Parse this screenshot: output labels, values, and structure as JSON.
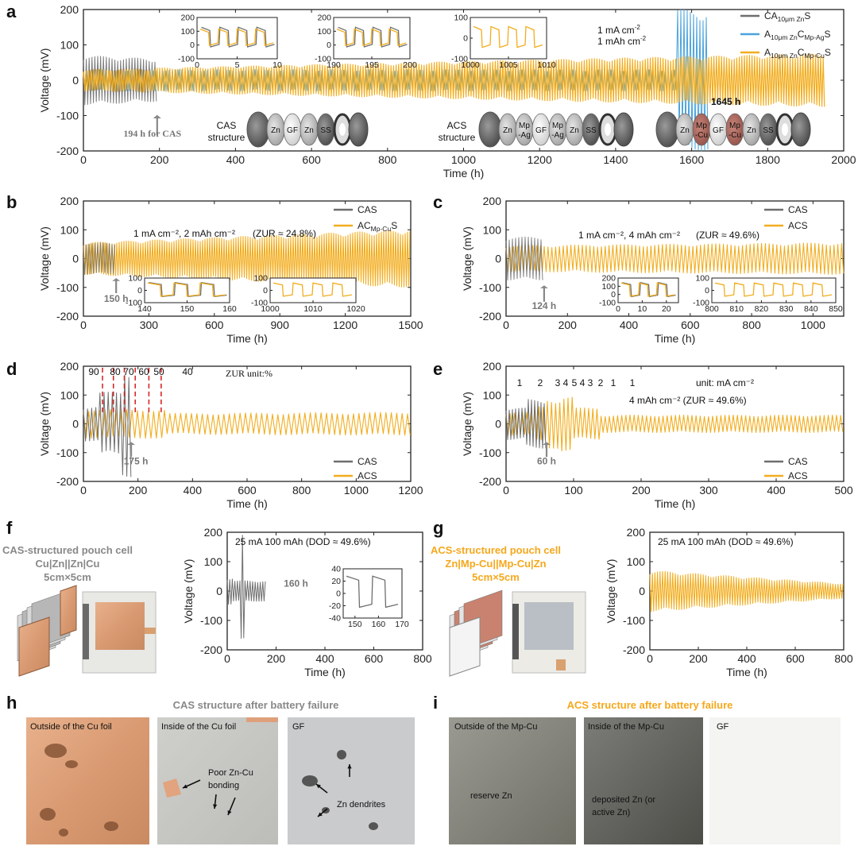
{
  "colors": {
    "cas": "#6e6e6e",
    "acs": "#f2ad1e",
    "acs_ag": "#4aa3dc",
    "cas_text": "#888888",
    "acs_text": "#f5a81c",
    "zur_line": "#d62728",
    "axis": "#222222"
  },
  "panel_labels": {
    "a": "a",
    "b": "b",
    "c": "c",
    "d": "d",
    "e": "e",
    "f": "f",
    "g": "g",
    "h": "h",
    "i": "i"
  },
  "chart_data": [
    {
      "id": "a",
      "type": "line",
      "xlabel": "Time (h)",
      "ylabel": "Voltage (mV)",
      "xlim": [
        0,
        2000
      ],
      "ylim": [
        -200,
        200
      ],
      "xticks": [
        0,
        200,
        400,
        600,
        800,
        1000,
        1200,
        1400,
        1600,
        1800,
        2000
      ],
      "yticks": [
        -200,
        -100,
        0,
        100,
        200
      ],
      "legend": [
        "CA10μm ZnS",
        "A10μm ZnCMp-AgS",
        "A10μm ZnCMp-CuS"
      ],
      "legend_parts": [
        {
          "main": "CA",
          "sub": "10μm Zn",
          "end": "S"
        },
        {
          "main": "A",
          "sub": "10μm Zn",
          "mid": "C",
          "sub2": "Mp-Ag",
          "end": "S"
        },
        {
          "main": "A",
          "sub": "10μm Zn",
          "mid": "C",
          "sub2": "Mp-Cu",
          "end": "S"
        }
      ],
      "condition_lines": [
        "1 mA cm",
        "1 mAh cm"
      ],
      "condition_superscript": "-2",
      "annotations": {
        "cas_failure": "194 h for CAS",
        "ag_failure": "1645 h"
      },
      "structures": {
        "cas_label": [
          "CAS",
          "structure"
        ],
        "acs_label": [
          "ACS",
          "structure"
        ],
        "cas_layers": [
          "Zn",
          "GF",
          "Zn",
          "SS"
        ],
        "acs_ag_layers": [
          "Zn",
          "Mp -Ag",
          "GF",
          "Mp -Ag",
          "Zn",
          "SS"
        ],
        "acs_cu_layers": [
          "Zn",
          "Mp -Cu",
          "GF",
          "Mp -Cu",
          "Zn",
          "SS"
        ]
      },
      "series": [
        {
          "name": "CA10μm ZnS",
          "x_end": 194,
          "amplitude_mV": [
            70,
            60
          ]
        },
        {
          "name": "A10μm ZnCMp-AgS",
          "x_end": 1645,
          "amplitude_mV": [
            30,
            30
          ],
          "spike_range": [
            1560,
            1645
          ]
        },
        {
          "name": "A10μm ZnCMp-CuS",
          "x_end": 1950,
          "amplitude_mV": [
            30,
            75
          ]
        }
      ],
      "insets": [
        {
          "xlim": [
            0,
            10
          ],
          "xticks": [
            0,
            5,
            10
          ],
          "ylim": [
            -100,
            200
          ],
          "yticks": [
            -100,
            0,
            100,
            200
          ]
        },
        {
          "xlim": [
            190,
            200
          ],
          "xticks": [
            190,
            195,
            200
          ],
          "ylim": [
            -100,
            200
          ],
          "yticks": [
            -100,
            0,
            100,
            200
          ]
        },
        {
          "xlim": [
            1000,
            1010
          ],
          "xticks": [
            1000,
            1005,
            1010
          ],
          "ylim": [
            -100,
            100
          ],
          "yticks": [
            -100,
            0,
            100
          ]
        }
      ]
    },
    {
      "id": "b",
      "type": "line",
      "xlabel": "Time (h)",
      "ylabel": "Voltage (mV)",
      "xlim": [
        0,
        1500
      ],
      "ylim": [
        -200,
        200
      ],
      "xticks": [
        0,
        300,
        600,
        900,
        1200,
        1500
      ],
      "yticks": [
        -200,
        -100,
        0,
        100,
        200
      ],
      "legend": [
        "CAS",
        "ACMp-CuS"
      ],
      "legend_parts": [
        {
          "main": "CAS"
        },
        {
          "main": "AC",
          "sub": "Mp-Cu",
          "end": "S"
        }
      ],
      "condition": "1 mA cm⁻², 2 mAh cm⁻²",
      "zur": "(ZUR ≈ 24.8%)",
      "annotations": {
        "cas_failure": "150 h"
      },
      "series": [
        {
          "name": "CAS",
          "x_end": 150,
          "amplitude_mV": [
            55,
            55
          ]
        },
        {
          "name": "ACMp-CuS",
          "x_end": 1500,
          "amplitude_mV": [
            55,
            100
          ]
        }
      ],
      "insets": [
        {
          "xlim": [
            140,
            160
          ],
          "xticks": [
            140,
            150,
            160
          ],
          "ylim": [
            -100,
            100
          ],
          "yticks": [
            -100,
            0,
            100
          ]
        },
        {
          "xlim": [
            1000,
            1020
          ],
          "xticks": [
            1000,
            1010,
            1020
          ],
          "ylim": [
            -100,
            100
          ],
          "yticks": [
            -100,
            0,
            100
          ]
        }
      ]
    },
    {
      "id": "c",
      "type": "line",
      "xlabel": "Time (h)",
      "ylabel": "Voltage (mV)",
      "xlim": [
        0,
        1100
      ],
      "ylim": [
        -200,
        200
      ],
      "xticks": [
        0,
        200,
        400,
        600,
        800,
        1000
      ],
      "yticks": [
        -200,
        -100,
        0,
        100,
        200
      ],
      "legend": [
        "CAS",
        "ACS"
      ],
      "condition": "1 mA cm⁻², 4 mAh cm⁻²",
      "zur": "(ZUR ≈ 49.6%)",
      "annotations": {
        "cas_failure": "124 h"
      },
      "series": [
        {
          "name": "CAS",
          "x_end": 124,
          "amplitude_mV": [
            75,
            75
          ]
        },
        {
          "name": "ACS",
          "x_end": 1100,
          "amplitude_mV": [
            45,
            55
          ]
        }
      ],
      "insets": [
        {
          "xlim": [
            0,
            25
          ],
          "xticks": [
            0,
            10,
            20
          ],
          "ylim": [
            -100,
            200
          ],
          "yticks": [
            -100,
            0,
            100,
            200
          ]
        },
        {
          "xlim": [
            800,
            850
          ],
          "xticks": [
            800,
            810,
            820,
            830,
            840,
            850
          ],
          "ylim": [
            -100,
            100
          ],
          "yticks": [
            -100,
            0,
            100
          ]
        }
      ]
    },
    {
      "id": "d",
      "type": "line",
      "xlabel": "Time (h)",
      "ylabel": "Voltage (mV)",
      "xlim": [
        0,
        1200
      ],
      "ylim": [
        -200,
        200
      ],
      "xticks": [
        0,
        200,
        400,
        600,
        800,
        1000,
        1200
      ],
      "yticks": [
        -200,
        -100,
        0,
        100,
        200
      ],
      "legend": [
        "CAS",
        "ACS"
      ],
      "zur_header": "ZUR  unit:%",
      "zur_segments": [
        {
          "label": "90"
        },
        {
          "label": "80"
        },
        {
          "label": "70"
        },
        {
          "label": "60"
        },
        {
          "label": "50"
        },
        {
          "label": "40"
        }
      ],
      "zur_dividers": [
        70,
        110,
        150,
        190,
        240,
        285
      ],
      "annotations": {
        "cas_failure": "175 h"
      },
      "series": [
        {
          "name": "CAS",
          "x_end": 175,
          "amplitude_mV": [
            60,
            190
          ]
        },
        {
          "name": "ACS",
          "x_end": 1200,
          "amplitude_mV": [
            35,
            40
          ]
        }
      ]
    },
    {
      "id": "e",
      "type": "line",
      "xlabel": "Time (h)",
      "ylabel": "Voltage (mV)",
      "xlim": [
        0,
        500
      ],
      "ylim": [
        -200,
        200
      ],
      "xticks": [
        0,
        100,
        200,
        300,
        400,
        500
      ],
      "yticks": [
        -200,
        -100,
        0,
        100,
        200
      ],
      "legend": [
        "CAS",
        "ACS"
      ],
      "rate_labels": [
        "1",
        "2",
        "3",
        "4",
        "5",
        "4",
        "3",
        "2",
        "1"
      ],
      "unit": "unit: mA cm⁻²",
      "condition": "4 mAh cm⁻² (ZUR ≈ 49.6%)",
      "annotations": {
        "cas_failure": "60 h"
      },
      "series": [
        {
          "name": "CAS",
          "x_end": 60,
          "amplitude_mV": [
            50,
            80
          ]
        },
        {
          "name": "ACS",
          "x_end": 500,
          "amplitude_mV": [
            30,
            90
          ]
        }
      ]
    },
    {
      "id": "f",
      "type": "line",
      "xlabel": "Time (h)",
      "ylabel": "Voltage (mV)",
      "xlim": [
        0,
        800
      ],
      "ylim": [
        -200,
        200
      ],
      "xticks": [
        0,
        200,
        400,
        600,
        800
      ],
      "yticks": [
        -200,
        -100,
        0,
        100,
        200
      ],
      "condition": "25 mA 100 mAh (DOD ≈ 49.6%)",
      "annotations": {
        "cas_failure": "160 h"
      },
      "series": [
        {
          "name": "CAS",
          "x_end": 160,
          "amplitude_mV": [
            40,
            190
          ]
        }
      ],
      "insets": [
        {
          "xlim": [
            145,
            170
          ],
          "xticks": [
            150,
            160,
            170
          ],
          "ylim": [
            -40,
            40
          ],
          "yticks": [
            -40,
            -20,
            0,
            20,
            40
          ]
        }
      ]
    },
    {
      "id": "g",
      "type": "line",
      "xlabel": "Time (h)",
      "ylabel": "Voltage (mV)",
      "xlim": [
        0,
        800
      ],
      "ylim": [
        -200,
        200
      ],
      "xticks": [
        0,
        200,
        400,
        600,
        800
      ],
      "yticks": [
        -200,
        -100,
        0,
        100,
        200
      ],
      "condition": "25 mA 100 mAh (DOD ≈ 49.6%)",
      "series": [
        {
          "name": "ACS",
          "x_end": 800,
          "amplitude_mV": [
            70,
            25
          ]
        }
      ]
    }
  ],
  "pouch_f": {
    "title": "CAS-structured pouch cell",
    "formula": "Cu|Zn||Zn|Cu",
    "size": "5cm×5cm"
  },
  "pouch_g": {
    "title": "ACS-structured pouch cell",
    "formula": "Zn|Mp-Cu||Mp-Cu|Zn",
    "size": "5cm×5cm"
  },
  "photos_h": {
    "title": "CAS structure after battery failure",
    "panels": [
      "Outside of the Cu foil",
      "Inside of the Cu foil",
      "GF"
    ],
    "notes": {
      "bonding": [
        "Poor Zn-Cu",
        "bonding"
      ],
      "dendrites": "Zn dendrites"
    }
  },
  "photos_i": {
    "title": "ACS structure after battery failure",
    "panels": [
      "Outside of the Mp-Cu",
      "Inside of the Mp-Cu",
      "GF"
    ],
    "notes": {
      "reserve": "reserve Zn",
      "deposited": [
        "deposited Zn (or",
        "active Zn)"
      ]
    }
  }
}
